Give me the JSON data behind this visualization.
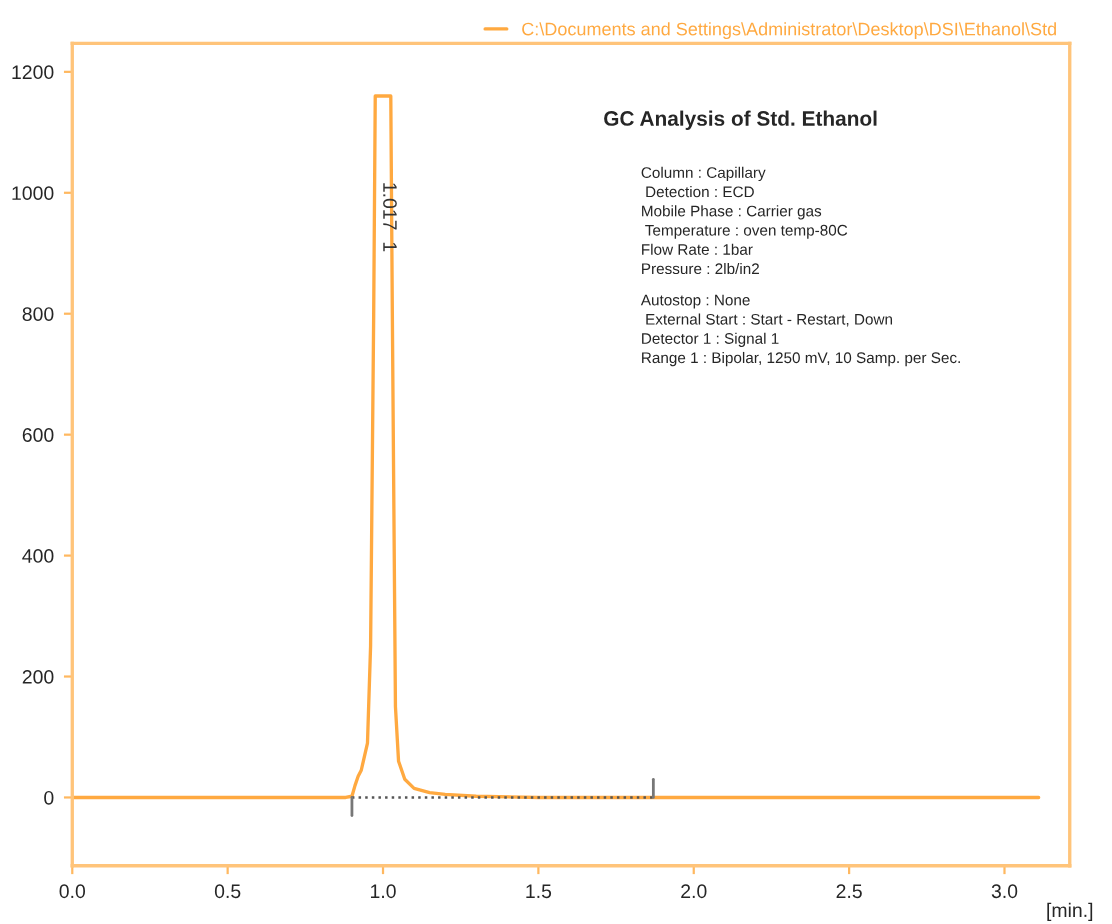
{
  "chart_data": {
    "type": "line",
    "title": "GC Analysis of Std. Ethanol",
    "xlabel": "[min.]",
    "x": [
      0,
      0.5,
      0.88,
      0.9,
      0.91,
      0.92,
      0.93,
      0.95,
      0.96,
      0.97,
      0.975,
      1.025,
      1.03,
      1.04,
      1.05,
      1.07,
      1.1,
      1.15,
      1.2,
      1.3,
      1.5,
      2.0,
      3.11
    ],
    "series": [
      {
        "name": "C:\\Documents and Settings\\Administrator\\Desktop\\DSI\\Ethanol\\Std",
        "color": "#ffa940",
        "values": [
          0,
          0,
          0,
          2,
          20,
          35,
          45,
          90,
          250,
          800,
          1160,
          1160,
          800,
          150,
          60,
          30,
          15,
          8,
          5,
          2,
          0,
          0,
          0
        ]
      },
      {
        "type": "line",
        "x": [
          0.9,
          1.87
        ],
        "color": "#555555",
        "line_style": "dotted",
        "values": [
          0,
          0
        ]
      }
    ],
    "annotations": [
      {
        "text": "1.017  1",
        "x": 1.017,
        "y": 960
      },
      "Column : Capillary\n Detection : ECD\nMobile Phase : Carrier gas\n Temperature : oven temp-80C\nFlow Rate : 1bar\nPressure : 2lb/in2",
      "Autostop : None\n External Start : Start - Restart, Down\nDetector 1 : Signal 1\nRange 1 : Bipolar, 1250 mV, 10 Samp. per Sec."
    ],
    "xlim": [
      0,
      3.21
    ],
    "ylim": [
      -113,
      1247
    ],
    "xticks": [
      {
        "value": 0,
        "label": "0.0"
      },
      0.5,
      {
        "value": 1,
        "label": "1.0"
      },
      1.5,
      {
        "value": 2,
        "label": "2.0"
      },
      2.5,
      {
        "value": 3,
        "label": "3.0"
      }
    ],
    "yticks": [
      0,
      200,
      400,
      600,
      800,
      1000,
      1200
    ],
    "grid": false,
    "legend": "top right",
    "line_style": "solid",
    "marker": "none"
  }
}
